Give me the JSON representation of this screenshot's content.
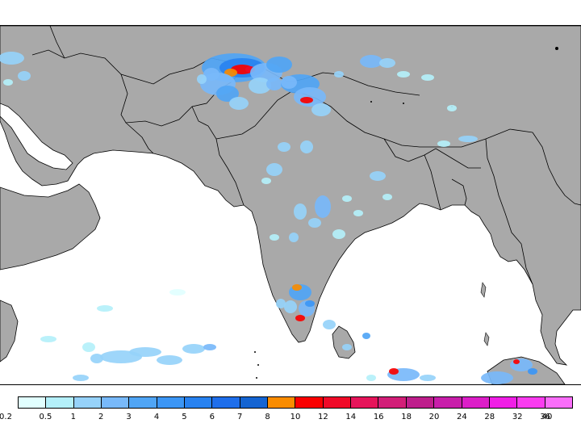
{
  "legend": {
    "colors": [
      "#e1ffff",
      "#b4f0fa",
      "#96d2fa",
      "#78b9fa",
      "#50a5f5",
      "#3c96f5",
      "#2882f0",
      "#1e6eeb",
      "#1464d2",
      "#fa8c00",
      "#fa0000",
      "#f00a28",
      "#e6145a",
      "#d21e78",
      "#be1e8c",
      "#c81eaa",
      "#dc1ec8",
      "#f01ee6",
      "#fa3cf0",
      "#fa6efa"
    ],
    "labels": [
      "0.2",
      "0.5",
      "1",
      "2",
      "3",
      "4",
      "5",
      "6",
      "7",
      "8",
      "10",
      "12",
      "14",
      "16",
      "18",
      "20",
      "24",
      "28",
      "32",
      "36",
      "40"
    ]
  },
  "map": {
    "land_color": "#a9a9a9",
    "ocean_color": "#ffffff",
    "border_color": "#000000"
  }
}
